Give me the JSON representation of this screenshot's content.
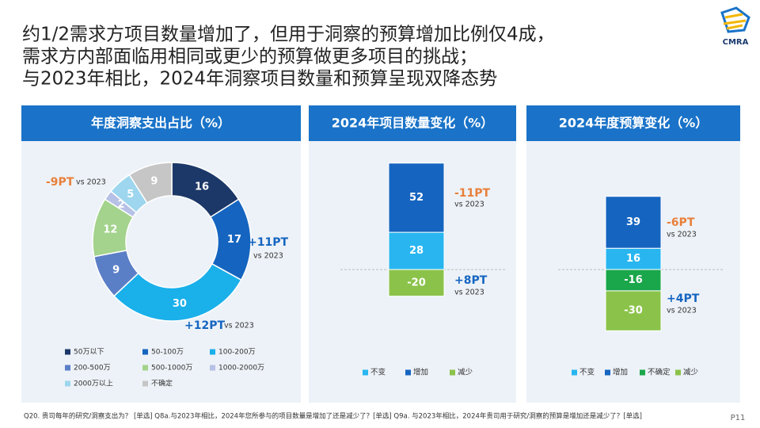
{
  "header": {
    "title_lines": [
      "约1/2需求方项目数量增加了，但用于洞察的预算增加比例仅4成，",
      "需求方内部面临用相同或更少的预算做更多项目的挑战；",
      "与2023年相比，2024年洞察项目数量和预算呈现双降态势"
    ],
    "logo": "CMRA"
  },
  "chart_data": [
    {
      "type": "donut",
      "title": "年度洞察支出占比（%）",
      "categories": [
        "50万以下",
        "50-100万",
        "100-200万",
        "200-500万",
        "500-1000万",
        "1000-2000万",
        "2000万以上",
        "不确定"
      ],
      "values": [
        16,
        17,
        30,
        9,
        12,
        2,
        5,
        9
      ],
      "colors": [
        "#1c3868",
        "#1565c0",
        "#1ab0ea",
        "#5b7fc7",
        "#a3d38c",
        "#b7c1e6",
        "#9dd6ee",
        "#c6c6c6"
      ],
      "annotations": [
        {
          "text": "-9PT",
          "note": "vs 2023",
          "color": "#e8803a"
        },
        {
          "text": "+11PT",
          "note": "vs 2023",
          "color": "#1565c0"
        },
        {
          "text": "+12PT",
          "note": "vs 2023",
          "color": "#1565c0"
        }
      ]
    },
    {
      "type": "stacked_bar",
      "title": "2024年项目数量变化（%）",
      "ylim": [
        -50,
        90
      ],
      "series": [
        {
          "name": "不变",
          "color": "#29b6f0",
          "values": [
            28
          ]
        },
        {
          "name": "增加",
          "color": "#1565c0",
          "values": [
            52
          ]
        },
        {
          "name": "减少",
          "color": "#8bc34a",
          "values": [
            -20
          ]
        }
      ],
      "annotations": [
        {
          "text": "-11PT",
          "note": "vs 2023",
          "color": "#e8803a"
        },
        {
          "text": "+8PT",
          "note": "vs 2023",
          "color": "#1565c0"
        }
      ]
    },
    {
      "type": "stacked_bar",
      "title": "2024年度预算变化（%）",
      "ylim": [
        -50,
        90
      ],
      "series": [
        {
          "name": "不变",
          "color": "#29b6f0",
          "values": [
            16
          ]
        },
        {
          "name": "增加",
          "color": "#1565c0",
          "values": [
            39
          ]
        },
        {
          "name": "不确定",
          "color": "#1aa64a",
          "values": [
            -16
          ]
        },
        {
          "name": "减少",
          "color": "#8bc34a",
          "values": [
            -30
          ]
        }
      ],
      "annotations": [
        {
          "text": "-6PT",
          "note": "vs 2023",
          "color": "#e8803a"
        },
        {
          "text": "+4PT",
          "note": "vs 2023",
          "color": "#1565c0"
        }
      ]
    }
  ],
  "footnote": "Q20. 贵司每年的研究/洞察支出为？ [单选]   Q8a.与2023年相比，2024年您所参与的项目数量是增加了还是减少了？[单选]   Q9a. 与2023年相比，2024年贵司用于研究/洞察的预算是增加还是减少了？[单选]",
  "page": "P11"
}
